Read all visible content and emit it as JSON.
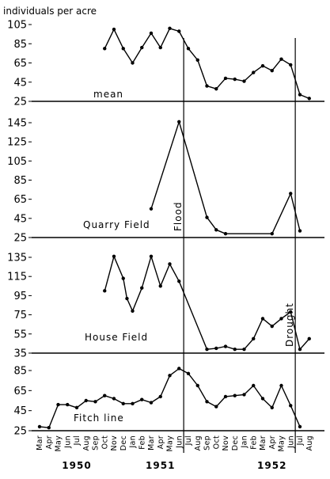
{
  "chart_data": {
    "type": "line",
    "units_label": "individuals per acre",
    "months": [
      "Mar",
      "Apr",
      "May",
      "Jun",
      "Jul",
      "Aug",
      "Sep",
      "Oct",
      "Nov",
      "Dec",
      "Jan",
      "Feb",
      "Mar",
      "Apr",
      "May",
      "Jun",
      "Jul",
      "Aug",
      "Sep",
      "Oct",
      "Nov",
      "Dec",
      "Jan",
      "Feb",
      "Mar",
      "Apr",
      "May",
      "Jun",
      "Jul",
      "Aug"
    ],
    "years": [
      {
        "label": "1950",
        "month_index": 4
      },
      {
        "label": "1951",
        "month_index": 13
      },
      {
        "label": "1952",
        "month_index": 25
      }
    ],
    "events": [
      {
        "label": "Flood",
        "month_index": 15.5,
        "label_panel": 1
      },
      {
        "label": "Drought",
        "month_index": 27.5,
        "label_panel": 2
      }
    ],
    "panels": [
      {
        "label": "mean",
        "ylim": [
          25,
          105
        ],
        "yticks": [
          "105",
          "85",
          "65",
          "45",
          "25"
        ],
        "ytick_values": [
          105,
          85,
          65,
          45,
          25
        ],
        "points": [
          [
            7,
            80
          ],
          [
            8,
            100
          ],
          [
            9,
            80
          ],
          [
            10,
            65
          ],
          [
            11,
            81
          ],
          [
            12,
            96
          ],
          [
            13,
            81
          ],
          [
            14,
            101
          ],
          [
            15,
            98
          ],
          [
            16,
            80
          ],
          [
            17,
            68
          ],
          [
            18,
            41
          ],
          [
            19,
            38
          ],
          [
            20,
            49
          ],
          [
            21,
            48
          ],
          [
            22,
            46
          ],
          [
            23,
            55
          ],
          [
            24,
            62
          ],
          [
            25,
            57
          ],
          [
            26,
            69
          ],
          [
            27,
            63
          ],
          [
            28,
            32
          ],
          [
            29,
            28
          ]
        ]
      },
      {
        "label": "Quarry Field",
        "ylim": [
          25,
          145
        ],
        "yticks": [
          "145",
          "125",
          "105",
          "85",
          "65",
          "45",
          "25"
        ],
        "ytick_values": [
          145,
          125,
          105,
          85,
          65,
          45,
          25
        ],
        "points": [
          [
            12,
            55
          ],
          [
            15,
            146
          ],
          [
            18,
            46
          ],
          [
            19,
            33
          ],
          [
            20,
            29
          ],
          [
            25,
            29
          ],
          [
            27,
            71
          ],
          [
            28,
            32
          ]
        ]
      },
      {
        "label": "House Field",
        "ylim": [
          35,
          135
        ],
        "yticks": [
          "135",
          "115",
          "95",
          "75",
          "55",
          "35"
        ],
        "ytick_values": [
          135,
          115,
          95,
          75,
          55,
          35
        ],
        "points": [
          [
            7,
            100
          ],
          [
            8,
            136
          ],
          [
            9,
            113
          ],
          [
            9.4,
            92
          ],
          [
            10,
            79
          ],
          [
            11,
            103
          ],
          [
            12,
            136
          ],
          [
            13,
            105
          ],
          [
            14,
            128
          ],
          [
            15,
            110
          ],
          [
            18,
            39
          ],
          [
            19,
            40
          ],
          [
            20,
            42
          ],
          [
            21,
            39
          ],
          [
            22,
            39
          ],
          [
            23,
            50
          ],
          [
            24,
            71
          ],
          [
            25,
            63
          ],
          [
            26,
            71
          ],
          [
            27,
            78
          ],
          [
            28,
            39
          ],
          [
            29,
            50
          ]
        ]
      },
      {
        "label": "Fitch line",
        "ylim": [
          25,
          85
        ],
        "yticks": [
          "85",
          "65",
          "45",
          "25"
        ],
        "ytick_values": [
          85,
          65,
          45,
          25
        ],
        "points": [
          [
            0,
            29
          ],
          [
            1,
            28
          ],
          [
            2,
            51
          ],
          [
            3,
            51
          ],
          [
            4,
            48
          ],
          [
            5,
            55
          ],
          [
            6,
            54
          ],
          [
            7,
            60
          ],
          [
            8,
            57
          ],
          [
            9,
            52
          ],
          [
            10,
            52
          ],
          [
            11,
            56
          ],
          [
            12,
            53
          ],
          [
            13,
            59
          ],
          [
            14,
            80
          ],
          [
            15,
            87
          ],
          [
            16,
            82
          ],
          [
            17,
            70
          ],
          [
            18,
            54
          ],
          [
            19,
            49
          ],
          [
            20,
            59
          ],
          [
            21,
            60
          ],
          [
            22,
            61
          ],
          [
            23,
            70
          ],
          [
            24,
            57
          ],
          [
            25,
            48
          ],
          [
            26,
            70
          ],
          [
            27,
            50
          ],
          [
            28,
            29
          ]
        ]
      }
    ]
  }
}
